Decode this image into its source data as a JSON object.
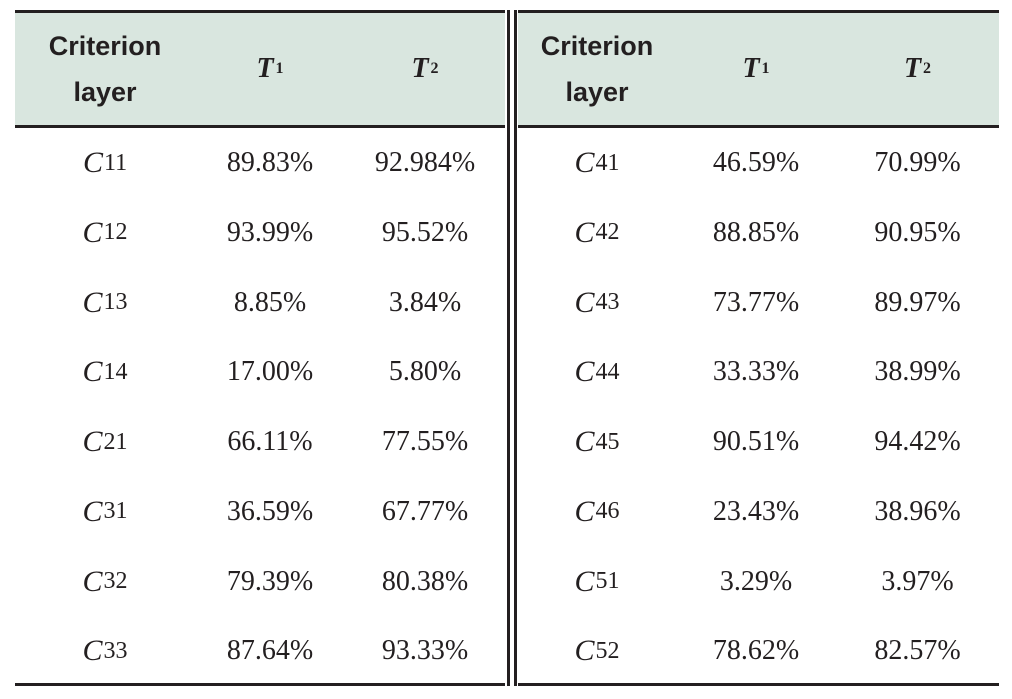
{
  "table": {
    "header": {
      "criterion_label": "Criterion layer",
      "t1_symbol": "T",
      "t1_sub": "1",
      "t2_symbol": "T",
      "t2_sub": "2"
    },
    "columns": [
      "Criterion layer",
      "T1",
      "T2",
      "Criterion layer",
      "T1",
      "T2"
    ],
    "rows": [
      {
        "c1_sym": "C",
        "c1_sub": "11",
        "t1a": "89.83%",
        "t2a": "92.984%",
        "c2_sym": "C",
        "c2_sub": "41",
        "t1b": "46.59%",
        "t2b": "70.99%"
      },
      {
        "c1_sym": "C",
        "c1_sub": "12",
        "t1a": "93.99%",
        "t2a": "95.52%",
        "c2_sym": "C",
        "c2_sub": "42",
        "t1b": "88.85%",
        "t2b": "90.95%"
      },
      {
        "c1_sym": "C",
        "c1_sub": "13",
        "t1a": "8.85%",
        "t2a": "3.84%",
        "c2_sym": "C",
        "c2_sub": "43",
        "t1b": "73.77%",
        "t2b": "89.97%"
      },
      {
        "c1_sym": "C",
        "c1_sub": "14",
        "t1a": "17.00%",
        "t2a": "5.80%",
        "c2_sym": "C",
        "c2_sub": "44",
        "t1b": "33.33%",
        "t2b": "38.99%"
      },
      {
        "c1_sym": "C",
        "c1_sub": "21",
        "t1a": "66.11%",
        "t2a": "77.55%",
        "c2_sym": "C",
        "c2_sub": "45",
        "t1b": "90.51%",
        "t2b": "94.42%"
      },
      {
        "c1_sym": "C",
        "c1_sub": "31",
        "t1a": "36.59%",
        "t2a": "67.77%",
        "c2_sym": "C",
        "c2_sub": "46",
        "t1b": "23.43%",
        "t2b": "38.96%"
      },
      {
        "c1_sym": "C",
        "c1_sub": "32",
        "t1a": "79.39%",
        "t2a": "80.38%",
        "c2_sym": "C",
        "c2_sub": "51",
        "t1b": "3.29%",
        "t2b": "3.97%"
      },
      {
        "c1_sym": "C",
        "c1_sub": "33",
        "t1a": "87.64%",
        "t2a": "93.33%",
        "c2_sym": "C",
        "c2_sub": "52",
        "t1b": "78.62%",
        "t2b": "82.57%"
      }
    ]
  },
  "colors": {
    "header_bg": "#d9e6df",
    "rule": "#231f20",
    "text": "#231f20"
  }
}
